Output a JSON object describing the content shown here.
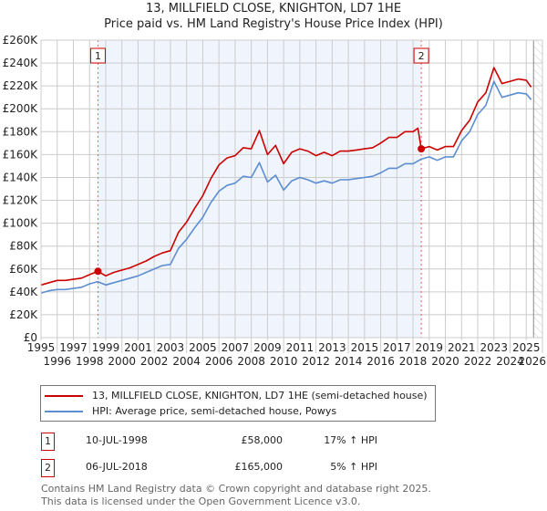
{
  "chart_data": {
    "type": "line",
    "title": "13, MILLFIELD CLOSE, KNIGHTON, LD7 1HE",
    "subtitle": "Price paid vs. HM Land Registry's House Price Index (HPI)",
    "xlim": [
      1995,
      2026
    ],
    "ylim": [
      0,
      260000
    ],
    "x_ticks": [
      "1995",
      "1996",
      "1997",
      "1998",
      "1999",
      "2000",
      "2001",
      "2002",
      "2003",
      "2004",
      "2005",
      "2006",
      "2007",
      "2008",
      "2009",
      "2010",
      "2011",
      "2012",
      "2013",
      "2014",
      "2015",
      "2016",
      "2017",
      "2018",
      "2019",
      "2020",
      "2021",
      "2022",
      "2023",
      "2024",
      "2025",
      "2026"
    ],
    "y_ticks": [
      {
        "value": 0,
        "label": "£0"
      },
      {
        "value": 20000,
        "label": "£20K"
      },
      {
        "value": 40000,
        "label": "£40K"
      },
      {
        "value": 60000,
        "label": "£60K"
      },
      {
        "value": 80000,
        "label": "£80K"
      },
      {
        "value": 100000,
        "label": "£100K"
      },
      {
        "value": 120000,
        "label": "£120K"
      },
      {
        "value": 140000,
        "label": "£140K"
      },
      {
        "value": 160000,
        "label": "£160K"
      },
      {
        "value": 180000,
        "label": "£180K"
      },
      {
        "value": 200000,
        "label": "£200K"
      },
      {
        "value": 220000,
        "label": "£220K"
      },
      {
        "value": 240000,
        "label": "£240K"
      },
      {
        "value": 260000,
        "label": "£260K"
      }
    ],
    "grid": true,
    "shaded_period": [
      1998.52,
      2018.51
    ],
    "forecast_hatch_from": 2025.45,
    "series": [
      {
        "name": "13, MILLFIELD CLOSE, KNIGHTON, LD7 1HE (semi-detached house)",
        "color": "#cc0000",
        "points": [
          [
            1995,
            46
          ],
          [
            1995.5,
            48
          ],
          [
            1996,
            50
          ],
          [
            1996.5,
            50
          ],
          [
            1997,
            51
          ],
          [
            1997.5,
            52
          ],
          [
            1998,
            55
          ],
          [
            1998.52,
            58
          ],
          [
            1999,
            54
          ],
          [
            1999.5,
            57
          ],
          [
            2000,
            59
          ],
          [
            2000.5,
            61
          ],
          [
            2001,
            64
          ],
          [
            2001.5,
            67
          ],
          [
            2002,
            71
          ],
          [
            2002.5,
            74
          ],
          [
            2003,
            76
          ],
          [
            2003.5,
            92
          ],
          [
            2004,
            101
          ],
          [
            2004.5,
            113
          ],
          [
            2005,
            124
          ],
          [
            2005.5,
            139
          ],
          [
            2006,
            151
          ],
          [
            2006.5,
            157
          ],
          [
            2007,
            159
          ],
          [
            2007.5,
            166
          ],
          [
            2008,
            165
          ],
          [
            2008.5,
            181
          ],
          [
            2009,
            160
          ],
          [
            2009.5,
            168
          ],
          [
            2010,
            152
          ],
          [
            2010.5,
            162
          ],
          [
            2011,
            165
          ],
          [
            2011.5,
            163
          ],
          [
            2012,
            159
          ],
          [
            2012.5,
            162
          ],
          [
            2013,
            159
          ],
          [
            2013.5,
            163
          ],
          [
            2014,
            163
          ],
          [
            2014.5,
            164
          ],
          [
            2015,
            165
          ],
          [
            2015.5,
            166
          ],
          [
            2016,
            170
          ],
          [
            2016.5,
            175
          ],
          [
            2017,
            175
          ],
          [
            2017.5,
            180
          ],
          [
            2018,
            180
          ],
          [
            2018.3,
            183
          ],
          [
            2018.51,
            165
          ],
          [
            2019,
            167
          ],
          [
            2019.5,
            164
          ],
          [
            2020,
            167
          ],
          [
            2020.5,
            167
          ],
          [
            2021,
            181
          ],
          [
            2021.5,
            190
          ],
          [
            2022,
            206
          ],
          [
            2022.5,
            214
          ],
          [
            2023,
            236
          ],
          [
            2023.5,
            222
          ],
          [
            2024,
            224
          ],
          [
            2024.5,
            226
          ],
          [
            2025,
            225
          ],
          [
            2025.3,
            219
          ]
        ]
      },
      {
        "name": "HPI: Average price, semi-detached house, Powys",
        "color": "#5b8ed0",
        "points": [
          [
            1995,
            39
          ],
          [
            1995.5,
            41
          ],
          [
            1996,
            42
          ],
          [
            1996.5,
            42
          ],
          [
            1997,
            43
          ],
          [
            1997.5,
            44
          ],
          [
            1998,
            47
          ],
          [
            1998.5,
            49
          ],
          [
            1999,
            46
          ],
          [
            1999.5,
            48
          ],
          [
            2000,
            50
          ],
          [
            2000.5,
            52
          ],
          [
            2001,
            54
          ],
          [
            2001.5,
            57
          ],
          [
            2002,
            60
          ],
          [
            2002.5,
            63
          ],
          [
            2003,
            64
          ],
          [
            2003.5,
            78
          ],
          [
            2004,
            86
          ],
          [
            2004.5,
            96
          ],
          [
            2005,
            105
          ],
          [
            2005.5,
            118
          ],
          [
            2006,
            128
          ],
          [
            2006.5,
            133
          ],
          [
            2007,
            135
          ],
          [
            2007.5,
            141
          ],
          [
            2008,
            140
          ],
          [
            2008.5,
            153
          ],
          [
            2009,
            136
          ],
          [
            2009.5,
            142
          ],
          [
            2010,
            129
          ],
          [
            2010.5,
            137
          ],
          [
            2011,
            140
          ],
          [
            2011.5,
            138
          ],
          [
            2012,
            135
          ],
          [
            2012.5,
            137
          ],
          [
            2013,
            135
          ],
          [
            2013.5,
            138
          ],
          [
            2014,
            138
          ],
          [
            2014.5,
            139
          ],
          [
            2015,
            140
          ],
          [
            2015.5,
            141
          ],
          [
            2016,
            144
          ],
          [
            2016.5,
            148
          ],
          [
            2017,
            148
          ],
          [
            2017.5,
            152
          ],
          [
            2018,
            152
          ],
          [
            2018.5,
            156
          ],
          [
            2019,
            158
          ],
          [
            2019.5,
            155
          ],
          [
            2020,
            158
          ],
          [
            2020.5,
            158
          ],
          [
            2021,
            172
          ],
          [
            2021.5,
            180
          ],
          [
            2022,
            195
          ],
          [
            2022.5,
            203
          ],
          [
            2023,
            224
          ],
          [
            2023.5,
            210
          ],
          [
            2024,
            212
          ],
          [
            2024.5,
            214
          ],
          [
            2025,
            213
          ],
          [
            2025.3,
            208
          ]
        ]
      }
    ],
    "y_unit_multiplier": 1000,
    "sales": [
      {
        "label": "1",
        "x": 1998.52,
        "price": 58000
      },
      {
        "label": "2",
        "x": 2018.51,
        "price": 165000
      }
    ]
  },
  "legend": {
    "property": "13, MILLFIELD CLOSE, KNIGHTON, LD7 1HE (semi-detached house)",
    "hpi": "HPI: Average price, semi-detached house, Powys"
  },
  "transactions": [
    {
      "label": "1",
      "date": "10-JUL-1998",
      "price": "£58,000",
      "hpi": "17% ↑ HPI"
    },
    {
      "label": "2",
      "date": "06-JUL-2018",
      "price": "£165,000",
      "hpi": "5% ↑ HPI"
    }
  ],
  "footer": {
    "line1": "Contains HM Land Registry data © Crown copyright and database right 2025.",
    "line2": "This data is licensed under the Open Government Licence v3.0."
  }
}
